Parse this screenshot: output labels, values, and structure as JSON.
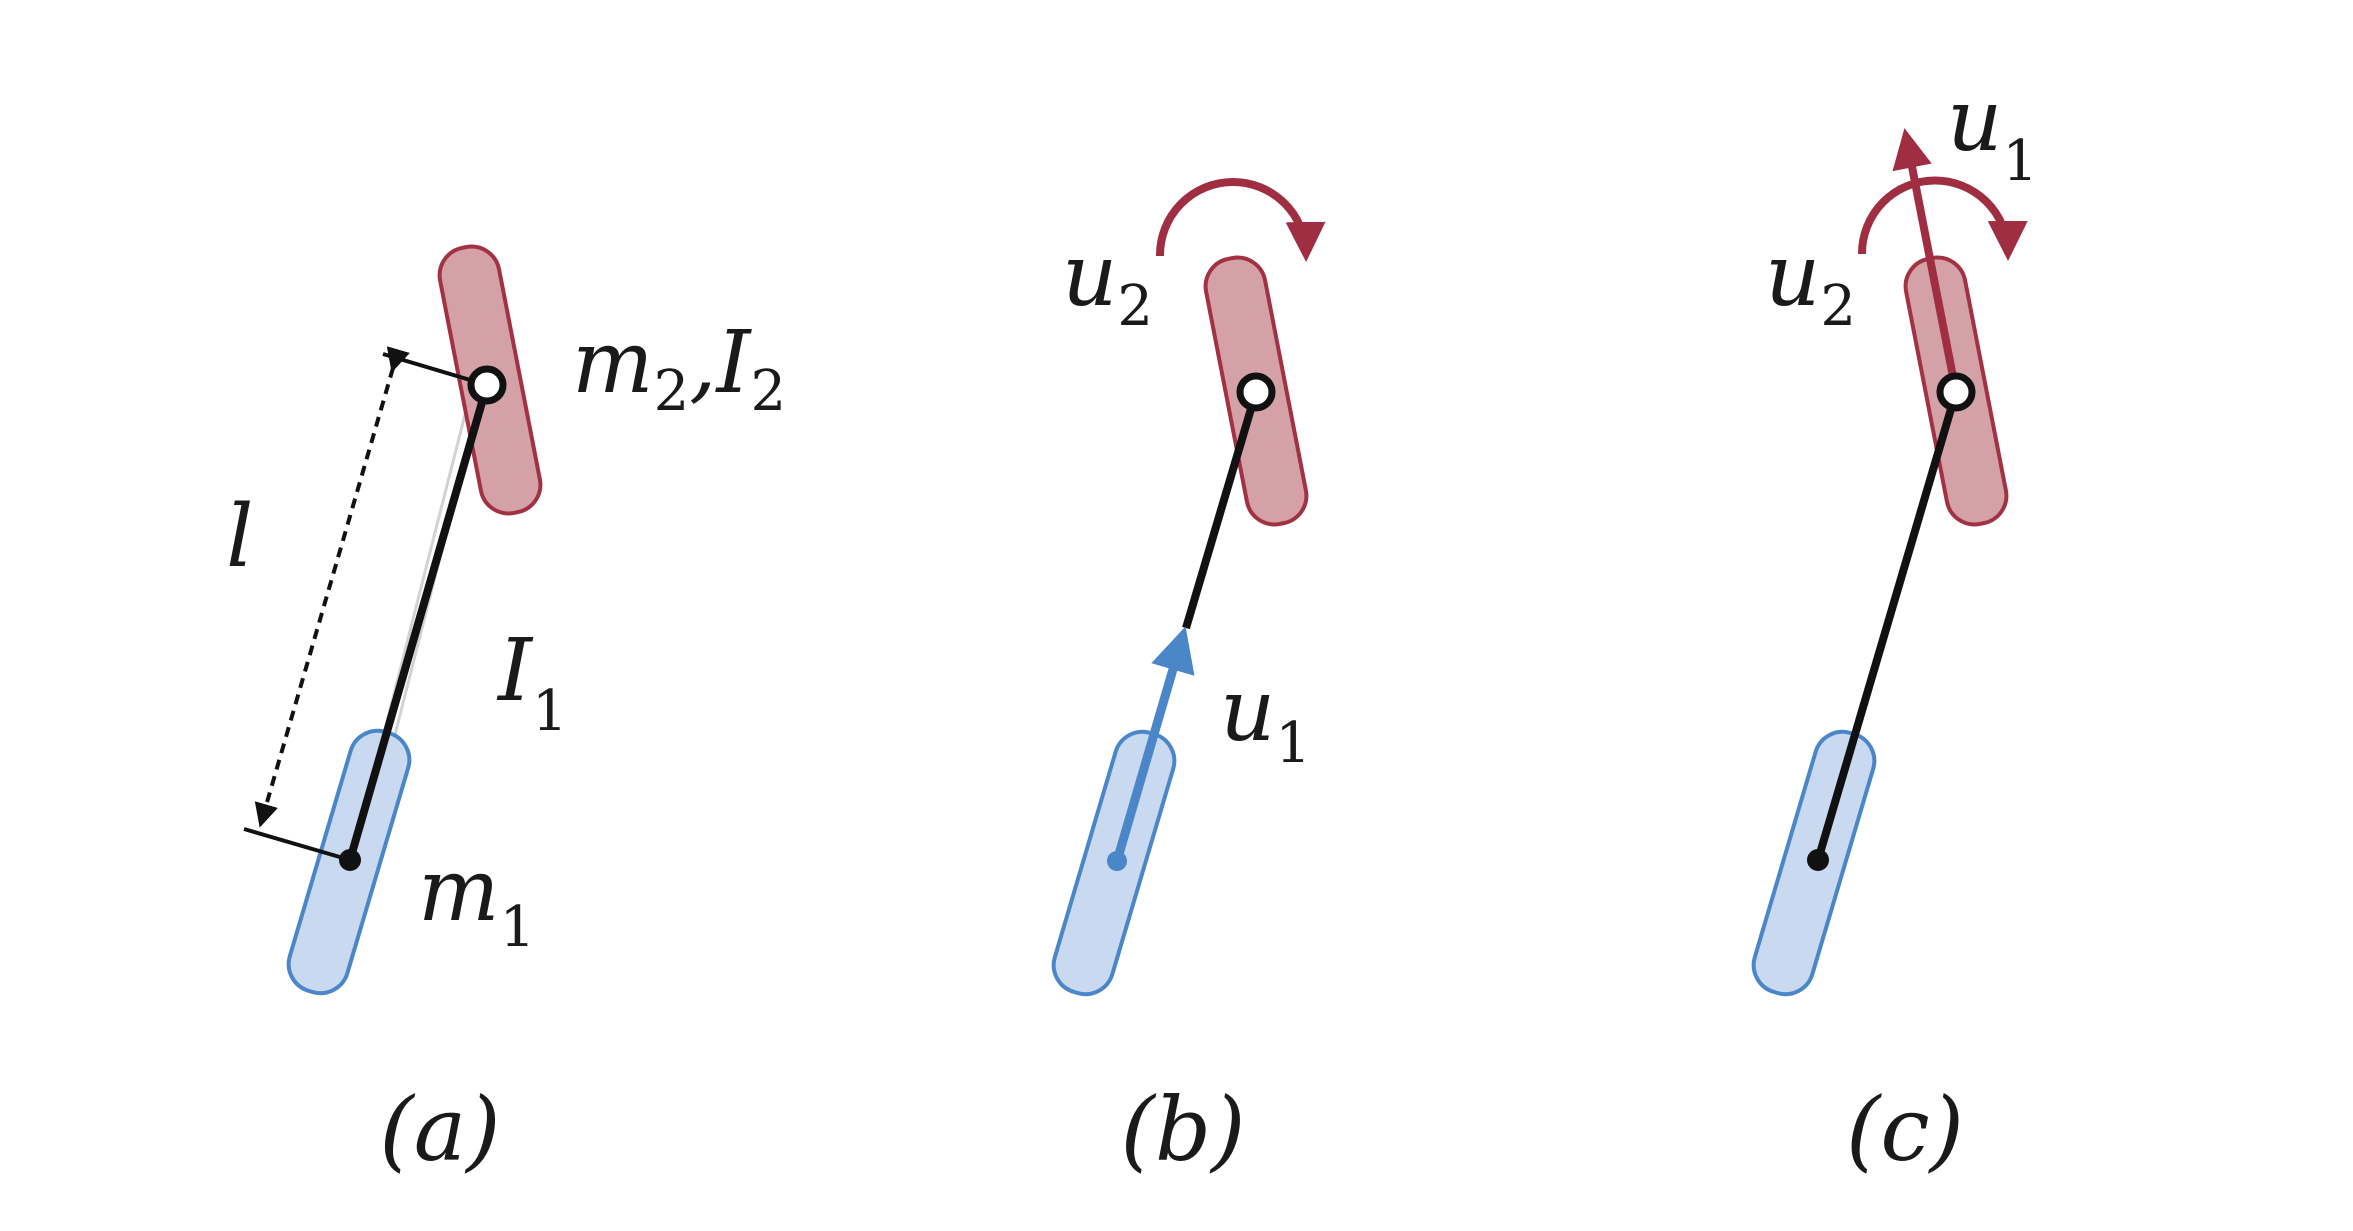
{
  "colors": {
    "blue_fill": "#c9d9f0",
    "blue_stroke": "#4a86c8",
    "red_fill": "#d4a2a6",
    "red_stroke": "#a33144",
    "red_arrow": "#a02e42",
    "blue_arrow": "#4a86c8",
    "link": "#111111",
    "ghost": "#cfcfcf"
  },
  "panels": [
    {
      "caption": "(a)",
      "labels": {
        "m2": "m",
        "m2_sub": "2",
        "comma": ",",
        "I2": "I",
        "I2_sub": "2",
        "l": "l",
        "I1": "I",
        "I1_sub": "1",
        "m1": "m",
        "m1_sub": "1"
      }
    },
    {
      "caption": "(b)",
      "labels": {
        "u2": "u",
        "u2_sub": "2",
        "u1": "u",
        "u1_sub": "1"
      }
    },
    {
      "caption": "(c)",
      "labels": {
        "u2": "u",
        "u2_sub": "2",
        "u1": "u",
        "u1_sub": "1"
      }
    }
  ]
}
